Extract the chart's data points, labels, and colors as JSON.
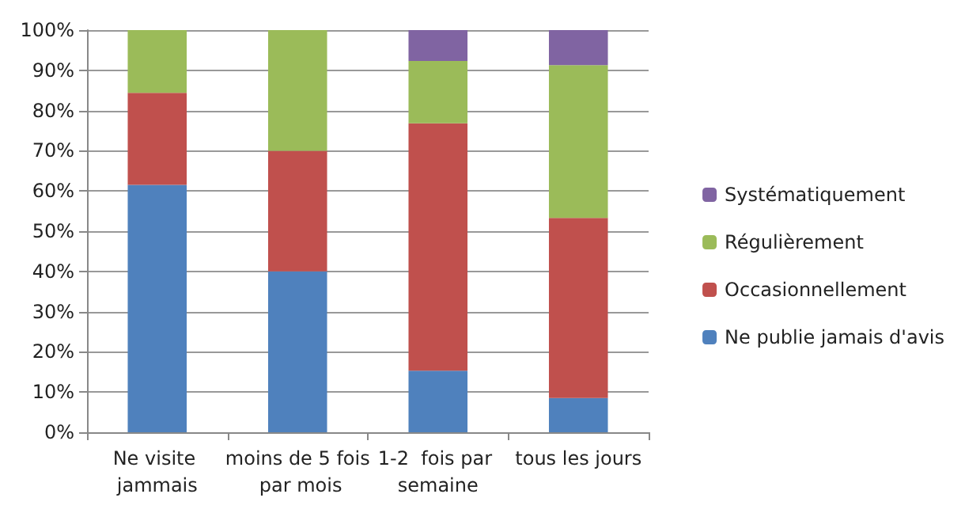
{
  "chart_data": {
    "type": "bar",
    "stacked": true,
    "categories": [
      "Ne visite jammais",
      "moins de 5 fois par mois",
      "1-2  fois par semaine",
      "tous les jours"
    ],
    "series": [
      {
        "name": "Ne publie jamais d'avis",
        "color": "#4f81bd",
        "values": [
          61.5,
          40,
          15.3,
          8.5
        ]
      },
      {
        "name": "Occasionnellement",
        "color": "#c0504d",
        "values": [
          22.9,
          30,
          61.5,
          44.8
        ]
      },
      {
        "name": "Régulièrement",
        "color": "#9bbb59",
        "values": [
          15.6,
          30,
          15.5,
          38
        ]
      },
      {
        "name": "Systématiquement",
        "color": "#8064a2",
        "values": [
          0,
          0,
          7.7,
          8.7
        ]
      }
    ],
    "ylim": [
      0,
      100
    ],
    "yticks": [
      {
        "value": 0,
        "label": "0%"
      },
      {
        "value": 10,
        "label": "10%"
      },
      {
        "value": 20,
        "label": "20%"
      },
      {
        "value": 30,
        "label": "30%"
      },
      {
        "value": 40,
        "label": "40%"
      },
      {
        "value": 50,
        "label": "50%"
      },
      {
        "value": 60,
        "label": "60%"
      },
      {
        "value": 70,
        "label": "70%"
      },
      {
        "value": 80,
        "label": "80%"
      },
      {
        "value": 90,
        "label": "90%"
      },
      {
        "value": 100,
        "label": "100%"
      }
    ],
    "grid": "y",
    "legend": "right"
  }
}
